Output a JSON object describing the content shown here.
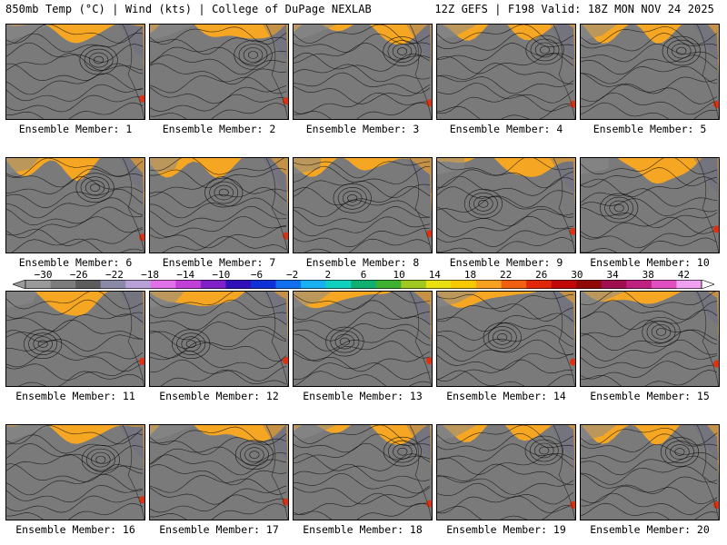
{
  "header": {
    "left": "850mb Temp (°C) | Wind (kts) | College of DuPage NEXLAB",
    "right": "12Z GEFS | F198 Valid: 18Z MON NOV 24 2025"
  },
  "colorbar": {
    "tick_labels": [
      "−30",
      "−26",
      "−22",
      "−18",
      "−14",
      "−10",
      "−6",
      "−2",
      "2",
      "6",
      "10",
      "14",
      "18",
      "22",
      "26",
      "30",
      "34",
      "38",
      "42"
    ],
    "range": [
      -32,
      44
    ],
    "colors": [
      "#9a9a9a",
      "#7c7c7c",
      "#5c5c5c",
      "#8a8aa8",
      "#b8a0d8",
      "#e070e8",
      "#c040d8",
      "#8020c8",
      "#3010b8",
      "#1030d8",
      "#1070f0",
      "#18b0f0",
      "#10d0c0",
      "#10b070",
      "#40b030",
      "#a0c820",
      "#e8e010",
      "#f8c800",
      "#f8a020",
      "#f06010",
      "#e02808",
      "#c00808",
      "#900808",
      "#a01050",
      "#c02080",
      "#e050c0",
      "#f0a0f0"
    ]
  },
  "panels": [
    {
      "label": "Ensemble Member: 1"
    },
    {
      "label": "Ensemble Member: 2"
    },
    {
      "label": "Ensemble Member: 3"
    },
    {
      "label": "Ensemble Member: 4"
    },
    {
      "label": "Ensemble Member: 5"
    },
    {
      "label": "Ensemble Member: 6"
    },
    {
      "label": "Ensemble Member: 7"
    },
    {
      "label": "Ensemble Member: 8"
    },
    {
      "label": "Ensemble Member: 9"
    },
    {
      "label": "Ensemble Member: 10"
    },
    {
      "label": "Ensemble Member: 11"
    },
    {
      "label": "Ensemble Member: 12"
    },
    {
      "label": "Ensemble Member: 13"
    },
    {
      "label": "Ensemble Member: 14"
    },
    {
      "label": "Ensemble Member: 15"
    },
    {
      "label": "Ensemble Member: 16"
    },
    {
      "label": "Ensemble Member: 17"
    },
    {
      "label": "Ensemble Member: 18"
    },
    {
      "label": "Ensemble Member: 19"
    },
    {
      "label": "Ensemble Member: 20"
    }
  ]
}
